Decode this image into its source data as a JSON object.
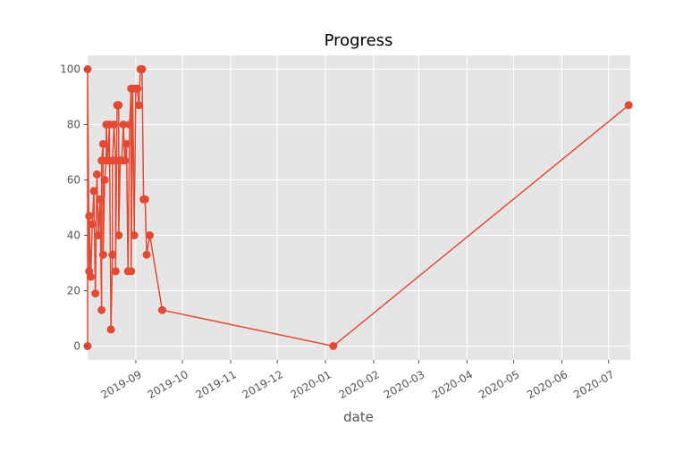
{
  "chart_data": {
    "type": "line",
    "title": "Progress",
    "xlabel": "date",
    "ylabel": "",
    "xlim": [
      "2019-08-01",
      "2020-07-15"
    ],
    "ylim": [
      -5,
      105
    ],
    "x_ticks": [
      "2019-09",
      "2019-10",
      "2019-11",
      "2019-12",
      "2020-01",
      "2020-02",
      "2020-03",
      "2020-04",
      "2020-05",
      "2020-06",
      "2020-07"
    ],
    "y_ticks": [
      "0",
      "20",
      "40",
      "60",
      "80",
      "100"
    ],
    "grid": true,
    "legend": "none",
    "series": [
      {
        "color": "#E24A33",
        "marker": "circle",
        "x": [
          "2019-08-01",
          "2019-08-01",
          "2019-08-02",
          "2019-08-02",
          "2019-08-03",
          "2019-08-04",
          "2019-08-05",
          "2019-08-06",
          "2019-08-07",
          "2019-08-08",
          "2019-08-09",
          "2019-08-10",
          "2019-08-10",
          "2019-08-11",
          "2019-08-11",
          "2019-08-12",
          "2019-08-13",
          "2019-08-13",
          "2019-08-14",
          "2019-08-15",
          "2019-08-16",
          "2019-08-17",
          "2019-08-17",
          "2019-08-18",
          "2019-08-19",
          "2019-08-19",
          "2019-08-20",
          "2019-08-21",
          "2019-08-21",
          "2019-08-22",
          "2019-08-22",
          "2019-08-23",
          "2019-08-24",
          "2019-08-25",
          "2019-08-26",
          "2019-08-27",
          "2019-08-28",
          "2019-08-29",
          "2019-08-29",
          "2019-08-30",
          "2019-08-31",
          "2019-09-01",
          "2019-09-02",
          "2019-09-03",
          "2019-09-04",
          "2019-09-05",
          "2019-09-05",
          "2019-09-06",
          "2019-09-07",
          "2019-09-08",
          "2019-09-10",
          "2019-09-18",
          "2020-01-06",
          "2020-07-14"
        ],
        "y": [
          0,
          100,
          27,
          47,
          25,
          44,
          56,
          19,
          62,
          40,
          53,
          13,
          67,
          73,
          33,
          60,
          67,
          80,
          67,
          80,
          6,
          33,
          67,
          80,
          67,
          27,
          87,
          87,
          40,
          67,
          67,
          67,
          80,
          67,
          73,
          27,
          80,
          93,
          27,
          93,
          40,
          93,
          93,
          87,
          100,
          100,
          100,
          53,
          53,
          33,
          40,
          13,
          0,
          87
        ]
      }
    ]
  }
}
